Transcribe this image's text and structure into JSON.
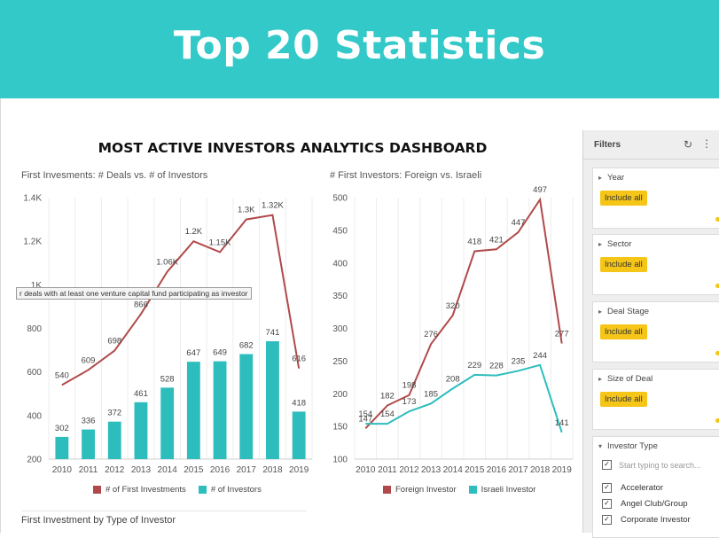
{
  "banner": {
    "title": "Top 20 Statistics"
  },
  "dashboard": {
    "title": "MOST ACTIVE INVESTORS ANALYTICS DASHBOARD"
  },
  "chart1": {
    "title": "First Invesments: # Deals vs. # of Investors",
    "tooltip": "r deals with at least one venture capital fund participating as investor",
    "legend": [
      "# of First Investments",
      "# of Investors"
    ]
  },
  "chart2": {
    "title": "# First Investors: Foreign vs. Israeli",
    "legend": [
      "Foreign Investor",
      "Israeli Investor"
    ]
  },
  "bottom_section": {
    "title": "First Investment by Type of Investor"
  },
  "colors": {
    "banner": "#33c9c9",
    "red_series": "#b04a4a",
    "teal_series": "#2ebdbd",
    "pill": "#f5c518"
  },
  "filters": {
    "title": "Filters",
    "icons": [
      "refresh-icon",
      "more-icon"
    ],
    "sections": [
      {
        "label": "Year",
        "pill": "Include all"
      },
      {
        "label": "Sector",
        "pill": "Include all"
      },
      {
        "label": "Deal Stage",
        "pill": "Include all"
      },
      {
        "label": "Size of Deal",
        "pill": "Include all"
      }
    ],
    "investor_type": {
      "label": "Investor Type",
      "search_placeholder": "Start typing to search...",
      "options": [
        "Accelerator",
        "Angel Club/Group",
        "Corporate Investor"
      ]
    }
  },
  "chart_data": [
    {
      "type": "bar",
      "title": "First Invesments: # Deals vs. # of Investors",
      "categories": [
        "2010",
        "2011",
        "2012",
        "2013",
        "2014",
        "2015",
        "2016",
        "2017",
        "2018",
        "2019"
      ],
      "y_ticks": [
        "200",
        "400",
        "600",
        "800",
        "1K",
        "1.2K",
        "1.4K"
      ],
      "ylim": [
        200,
        1400
      ],
      "grid": "vertical",
      "legend_position": "bottom",
      "series": [
        {
          "name": "# of First Investments",
          "kind": "line",
          "color": "#b04a4a",
          "values": [
            540,
            609,
            698,
            866,
            1060,
            1200,
            1150,
            1300,
            1320,
            616
          ],
          "labels": [
            "540",
            "609",
            "698",
            "866",
            "1.06K",
            "1.2K",
            "1.15K",
            "1.3K",
            "1.32K",
            "616"
          ]
        },
        {
          "name": "# of Investors",
          "kind": "bar",
          "color": "#2ebdbd",
          "values": [
            302,
            336,
            372,
            461,
            528,
            647,
            649,
            682,
            741,
            418
          ],
          "labels": [
            "302",
            "336",
            "372",
            "461",
            "528",
            "647",
            "649",
            "682",
            "741",
            "418"
          ]
        }
      ]
    },
    {
      "type": "line",
      "title": "# First Investors: Foreign vs. Israeli",
      "categories": [
        "2010",
        "2011",
        "2012",
        "2013",
        "2014",
        "2015",
        "2016",
        "2017",
        "2018",
        "2019"
      ],
      "y_ticks": [
        "100",
        "150",
        "200",
        "250",
        "300",
        "350",
        "400",
        "450",
        "500"
      ],
      "ylim": [
        100,
        500
      ],
      "grid": "vertical",
      "legend_position": "bottom",
      "series": [
        {
          "name": "Foreign Investor",
          "color": "#b04a4a",
          "values": [
            147,
            182,
            198,
            276,
            320,
            418,
            421,
            447,
            497,
            277
          ],
          "labels": [
            "147",
            "182",
            "198",
            "276",
            "320",
            "418",
            "421",
            "447",
            "497",
            "277"
          ]
        },
        {
          "name": "Israeli Investor",
          "color": "#2ebdbd",
          "values": [
            154,
            154,
            173,
            185,
            208,
            229,
            228,
            235,
            244,
            141
          ],
          "labels": [
            "154",
            "154",
            "173",
            "185",
            "208",
            "229",
            "228",
            "235",
            "244",
            "141"
          ]
        }
      ]
    }
  ]
}
